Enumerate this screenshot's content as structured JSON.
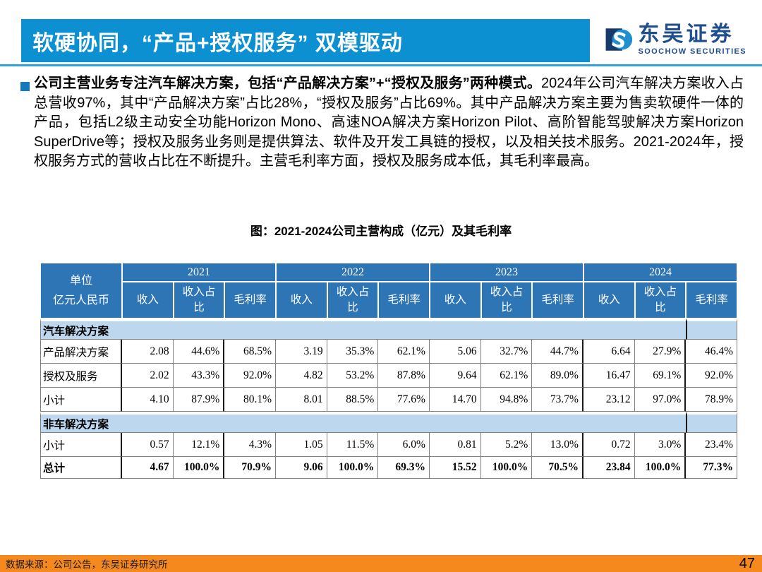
{
  "header": {
    "title": "软硬协同，“产品+授权服务” 双模驱动",
    "banner_color": "#0C90D2"
  },
  "logo": {
    "icon": "soochow-interlocking-s-icon",
    "icon_glyph": "S",
    "name_cn": "东吴证券",
    "name_en": "SOOCHOW SECURITIES",
    "navy": "#17396B",
    "blue": "#1F8FD0",
    "text_color": "#1F4E8F"
  },
  "summary": {
    "lead": "公司主营业务专注汽车解决方案，包括“产品解决方案”+“授权及服务”两种模式。",
    "body": "2024年公司汽车解决方案收入占总营收97%，其中“产品解决方案”占比28%，“授权及服务”占比69%。其中产品解决方案主要为售卖软硬件一体的产品，包括L2级主动安全功能Horizon Mono、高速NOA解决方案Horizon Pilot、高阶智能驾驶解决方案Horizon SuperDrive等；授权及服务业务则是提供算法、软件及开发工具链的授权，以及相关技术服务。2021-2024年，授权服务方式的营收占比在不断提升。主营毛利率方面，授权及服务成本低，其毛利率最高。"
  },
  "table": {
    "caption": "图：2021-2024公司主营构成（亿元）及其毛利率",
    "unit_label": "单位\n亿元人民币",
    "years": [
      "2021",
      "2022",
      "2023",
      "2024"
    ],
    "sub_headers": [
      "收入",
      "收入占\n比",
      "毛利率"
    ],
    "header_bg": "#2E75B6",
    "section_bg": "#BDD7EE",
    "sections": [
      {
        "title": "汽车解决方案",
        "rows": [
          {
            "label": "产品解决方案",
            "values": [
              "2.08",
              "44.6%",
              "68.5%",
              "3.19",
              "35.3%",
              "62.1%",
              "5.06",
              "32.7%",
              "44.7%",
              "6.64",
              "27.9%",
              "46.4%"
            ]
          },
          {
            "label": "授权及服务",
            "values": [
              "2.02",
              "43.3%",
              "92.0%",
              "4.82",
              "53.2%",
              "87.8%",
              "9.64",
              "62.1%",
              "89.0%",
              "16.47",
              "69.1%",
              "92.0%"
            ]
          },
          {
            "label": "小计",
            "values": [
              "4.10",
              "87.9%",
              "80.1%",
              "8.01",
              "88.5%",
              "77.6%",
              "14.70",
              "94.8%",
              "73.7%",
              "23.12",
              "97.0%",
              "78.9%"
            ]
          }
        ]
      },
      {
        "title": "非车解决方案",
        "rows": [
          {
            "label": "小计",
            "values": [
              "0.57",
              "12.1%",
              "4.3%",
              "1.05",
              "11.5%",
              "6.0%",
              "0.81",
              "5.2%",
              "13.0%",
              "0.72",
              "3.0%",
              "23.4%"
            ]
          }
        ]
      }
    ],
    "total": {
      "label": "总计",
      "values": [
        "4.67",
        "100.0%",
        "70.9%",
        "9.06",
        "100.0%",
        "69.3%",
        "15.52",
        "100.0%",
        "70.5%",
        "23.84",
        "100.0%",
        "77.3%"
      ]
    }
  },
  "footer": {
    "source": "数据来源：公司公告，东吴证券研究所",
    "page": "47",
    "bar_color": "#F6891E"
  }
}
